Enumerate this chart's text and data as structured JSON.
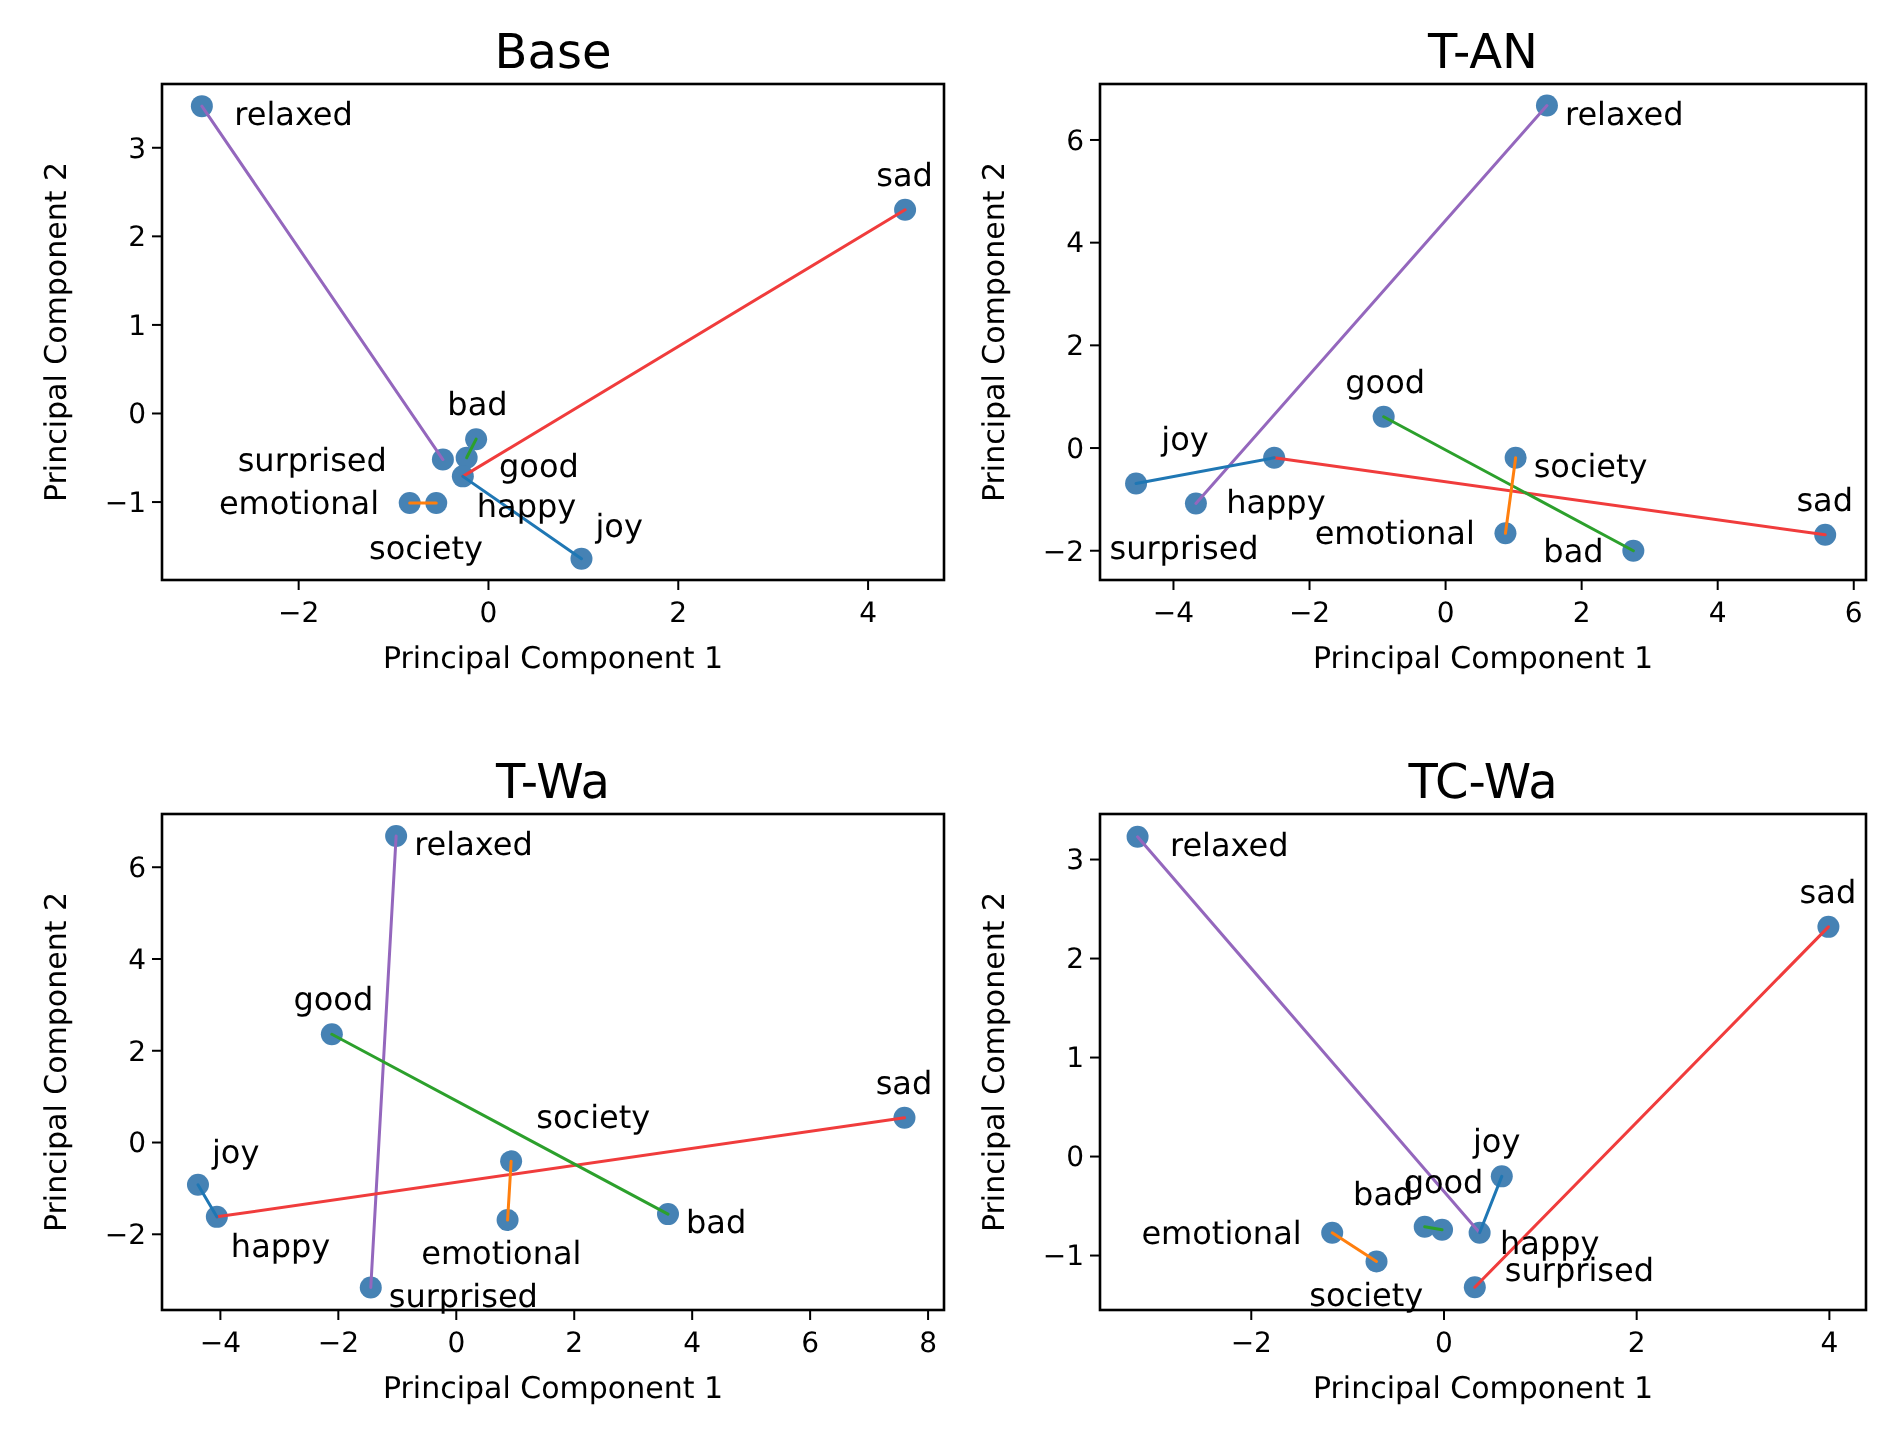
{
  "chart_data": [
    {
      "type": "scatter",
      "title": "Base",
      "xlabel": "Principal Component 1",
      "ylabel": "Principal Component 2",
      "xlim": [
        -3.44,
        4.8
      ],
      "ylim": [
        -1.88,
        3.72
      ],
      "xticks": [
        -2,
        0,
        2,
        4
      ],
      "yticks": [
        -1,
        0,
        1,
        2,
        3
      ],
      "grid": false,
      "series": [
        {
          "type": "line",
          "marker": "none",
          "color": "#9467bd",
          "x": [
            -3.02,
            -0.48
          ],
          "values": [
            3.47,
            -0.52
          ]
        },
        {
          "type": "line",
          "marker": "none",
          "color": "#f03c3c",
          "x": [
            4.39,
            -0.27
          ],
          "values": [
            2.3,
            -0.71
          ]
        },
        {
          "type": "line",
          "marker": "none",
          "color": "#2ca02c",
          "x": [
            -0.13,
            -0.23
          ],
          "values": [
            -0.29,
            -0.5
          ]
        },
        {
          "type": "line",
          "marker": "none",
          "color": "#ff7f0e",
          "x": [
            -0.83,
            -0.55
          ],
          "values": [
            -1.01,
            -1.01
          ]
        },
        {
          "type": "line",
          "marker": "none",
          "color": "#1f77b4",
          "x": [
            0.98,
            -0.27
          ],
          "values": [
            -1.64,
            -0.71
          ]
        },
        {
          "marker": "circle",
          "color": "#4682b4",
          "x": [
            -3.02,
            4.39,
            -0.13,
            -0.48,
            -0.23,
            -0.27,
            -0.83,
            -0.55,
            0.98
          ],
          "values": [
            3.47,
            2.3,
            -0.29,
            -0.52,
            -0.5,
            -0.71,
            -1.01,
            -1.01,
            -1.64
          ]
        }
      ],
      "annotations": [
        {
          "text": "relaxed",
          "x": -3.02,
          "y": 3.47
        },
        {
          "text": "sad",
          "x": 4.39,
          "y": 2.3
        },
        {
          "text": "bad",
          "x": -0.13,
          "y": -0.29
        },
        {
          "text": "surprised",
          "x": -0.48,
          "y": -0.52
        },
        {
          "text": "good",
          "x": -0.23,
          "y": -0.5
        },
        {
          "text": "happy",
          "x": -0.27,
          "y": -0.71
        },
        {
          "text": "emotional",
          "x": -0.83,
          "y": -1.01
        },
        {
          "text": "society",
          "x": -0.55,
          "y": -1.01
        },
        {
          "text": "joy",
          "x": 0.98,
          "y": -1.64
        }
      ]
    },
    {
      "type": "scatter",
      "title": "T-AN",
      "xlabel": "Principal Component 1",
      "ylabel": "Principal Component 2",
      "xlim": [
        -5.08,
        6.18
      ],
      "ylim": [
        -2.57,
        7.09
      ],
      "xticks": [
        -4,
        -2,
        0,
        2,
        4,
        6
      ],
      "yticks": [
        -2,
        0,
        2,
        4,
        6
      ],
      "grid": false,
      "series": [
        {
          "type": "line",
          "marker": "none",
          "color": "#9467bd",
          "x": [
            1.49,
            -3.67
          ],
          "values": [
            6.67,
            -1.08
          ]
        },
        {
          "type": "line",
          "marker": "none",
          "color": "#f03c3c",
          "x": [
            5.58,
            -2.52
          ],
          "values": [
            -1.69,
            -0.19
          ]
        },
        {
          "type": "line",
          "marker": "none",
          "color": "#2ca02c",
          "x": [
            -0.91,
            2.76
          ],
          "values": [
            0.61,
            -2.0
          ]
        },
        {
          "type": "line",
          "marker": "none",
          "color": "#ff7f0e",
          "x": [
            0.88,
            1.03
          ],
          "values": [
            -1.66,
            -0.19
          ]
        },
        {
          "type": "line",
          "marker": "none",
          "color": "#1f77b4",
          "x": [
            -4.55,
            -2.52
          ],
          "values": [
            -0.69,
            -0.19
          ]
        },
        {
          "marker": "circle",
          "color": "#4682b4",
          "x": [
            1.49,
            -0.91,
            1.03,
            -4.55,
            -2.52,
            -3.67,
            0.88,
            2.76,
            5.58
          ],
          "values": [
            6.67,
            0.61,
            -0.19,
            -0.69,
            -0.19,
            -1.08,
            -1.66,
            -2.0,
            -1.69
          ]
        }
      ],
      "annotations": [
        {
          "text": "relaxed",
          "x": 1.49,
          "y": 6.67
        },
        {
          "text": "good",
          "x": -0.91,
          "y": 0.61
        },
        {
          "text": "society",
          "x": 1.03,
          "y": -0.19
        },
        {
          "text": "joy",
          "x": -4.55,
          "y": -0.69
        },
        {
          "text": "happy",
          "x": -2.52,
          "y": -0.19
        },
        {
          "text": "surprised",
          "x": -3.67,
          "y": -1.08
        },
        {
          "text": "emotional",
          "x": 0.88,
          "y": -1.66
        },
        {
          "text": "bad",
          "x": 2.76,
          "y": -2.0
        },
        {
          "text": "sad",
          "x": 5.58,
          "y": -1.69
        }
      ]
    },
    {
      "type": "scatter",
      "title": "T-Wa",
      "xlabel": "Principal Component 1",
      "ylabel": "Principal Component 2",
      "xlim": [
        -4.99,
        8.27
      ],
      "ylim": [
        -3.65,
        7.16
      ],
      "xticks": [
        -4,
        -2,
        0,
        2,
        4,
        6,
        8
      ],
      "yticks": [
        -2,
        0,
        2,
        4,
        6
      ],
      "grid": false,
      "series": [
        {
          "type": "line",
          "marker": "none",
          "color": "#9467bd",
          "x": [
            -1.02,
            -1.45
          ],
          "values": [
            6.68,
            -3.16
          ]
        },
        {
          "type": "line",
          "marker": "none",
          "color": "#f03c3c",
          "x": [
            7.6,
            -4.06
          ],
          "values": [
            0.54,
            -1.62
          ]
        },
        {
          "type": "line",
          "marker": "none",
          "color": "#2ca02c",
          "x": [
            -2.11,
            3.59
          ],
          "values": [
            2.36,
            -1.56
          ]
        },
        {
          "type": "line",
          "marker": "none",
          "color": "#ff7f0e",
          "x": [
            0.87,
            0.93
          ],
          "values": [
            -1.69,
            -0.41
          ]
        },
        {
          "type": "line",
          "marker": "none",
          "color": "#1f77b4",
          "x": [
            -4.38,
            -4.06
          ],
          "values": [
            -0.92,
            -1.62
          ]
        },
        {
          "marker": "circle",
          "color": "#4682b4",
          "x": [
            -1.02,
            -2.11,
            7.6,
            0.93,
            -4.38,
            -4.06,
            3.59,
            0.87,
            -1.45
          ],
          "values": [
            6.68,
            2.36,
            0.54,
            -0.41,
            -0.92,
            -1.62,
            -1.56,
            -1.69,
            -3.16
          ]
        }
      ],
      "annotations": [
        {
          "text": "relaxed",
          "x": -1.02,
          "y": 6.68
        },
        {
          "text": "good",
          "x": -2.11,
          "y": 2.36
        },
        {
          "text": "sad",
          "x": 7.6,
          "y": 0.54
        },
        {
          "text": "society",
          "x": 0.93,
          "y": -0.41
        },
        {
          "text": "joy",
          "x": -4.38,
          "y": -0.92
        },
        {
          "text": "happy",
          "x": -4.06,
          "y": -1.62
        },
        {
          "text": "bad",
          "x": 3.59,
          "y": -1.56
        },
        {
          "text": "emotional",
          "x": 0.87,
          "y": -1.69
        },
        {
          "text": "surprised",
          "x": -1.45,
          "y": -3.16
        }
      ]
    },
    {
      "type": "scatter",
      "title": "TC-Wa",
      "xlabel": "Principal Component 1",
      "ylabel": "Principal Component 2",
      "xlim": [
        -3.57,
        4.38
      ],
      "ylim": [
        -1.55,
        3.46
      ],
      "xticks": [
        -2,
        0,
        2,
        4
      ],
      "yticks": [
        -1,
        0,
        1,
        2,
        3
      ],
      "grid": false,
      "series": [
        {
          "type": "line",
          "marker": "none",
          "color": "#9467bd",
          "x": [
            -3.18,
            0.37
          ],
          "values": [
            3.23,
            -0.77
          ]
        },
        {
          "type": "line",
          "marker": "none",
          "color": "#f03c3c",
          "x": [
            3.99,
            0.32
          ],
          "values": [
            2.32,
            -1.32
          ]
        },
        {
          "type": "line",
          "marker": "none",
          "color": "#2ca02c",
          "x": [
            -0.2,
            -0.02
          ],
          "values": [
            -0.71,
            -0.74
          ]
        },
        {
          "type": "line",
          "marker": "none",
          "color": "#ff7f0e",
          "x": [
            -1.16,
            -0.7
          ],
          "values": [
            -0.77,
            -1.06
          ]
        },
        {
          "type": "line",
          "marker": "none",
          "color": "#1f77b4",
          "x": [
            0.6,
            0.37
          ],
          "values": [
            -0.2,
            -0.77
          ]
        },
        {
          "marker": "circle",
          "color": "#4682b4",
          "x": [
            -3.18,
            3.99,
            0.6,
            -0.2,
            -0.02,
            0.37,
            -1.16,
            -0.7,
            0.32
          ],
          "values": [
            3.23,
            2.32,
            -0.2,
            -0.71,
            -0.74,
            -0.77,
            -0.77,
            -1.06,
            -1.32
          ]
        }
      ],
      "annotations": [
        {
          "text": "relaxed",
          "x": -3.18,
          "y": 3.23
        },
        {
          "text": "sad",
          "x": 3.99,
          "y": 2.32
        },
        {
          "text": "joy",
          "x": 0.6,
          "y": -0.2
        },
        {
          "text": "bad",
          "x": -0.2,
          "y": -0.71
        },
        {
          "text": "good",
          "x": -0.02,
          "y": -0.74
        },
        {
          "text": "surprised",
          "x": 0.37,
          "y": -0.77
        },
        {
          "text": "emotional",
          "x": -1.16,
          "y": -0.77
        },
        {
          "text": "society",
          "x": -0.7,
          "y": -1.06
        },
        {
          "text": "happy",
          "x": 0.32,
          "y": -1.32
        }
      ]
    }
  ]
}
